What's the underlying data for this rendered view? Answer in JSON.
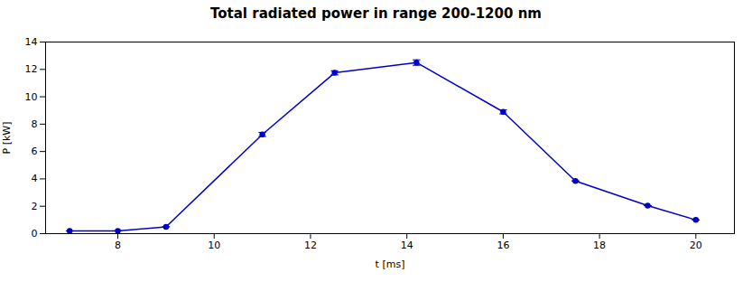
{
  "chart_data": {
    "type": "line",
    "title": "Total radiated power in range 200-1200 nm",
    "xlabel": "t [ms]",
    "ylabel": "P [kW]",
    "x": [
      7,
      8,
      9,
      11,
      12.5,
      14.2,
      16,
      17.5,
      19,
      20
    ],
    "values": [
      0.2,
      0.2,
      0.5,
      7.25,
      11.75,
      12.5,
      8.9,
      3.85,
      2.05,
      1.0
    ],
    "yerr": [
      0.0,
      0.0,
      0.0,
      0.15,
      0.15,
      0.2,
      0.15,
      0.0,
      0.0,
      0.0
    ],
    "color": "#0000cc",
    "marker": "circle",
    "line_style": "solid",
    "xlim": [
      6.5,
      20.8
    ],
    "ylim": [
      0,
      14
    ],
    "xticks": [
      8,
      10,
      12,
      14,
      16,
      18,
      20
    ],
    "yticks": [
      0,
      2,
      4,
      6,
      8,
      10,
      12,
      14
    ],
    "grid": false
  }
}
